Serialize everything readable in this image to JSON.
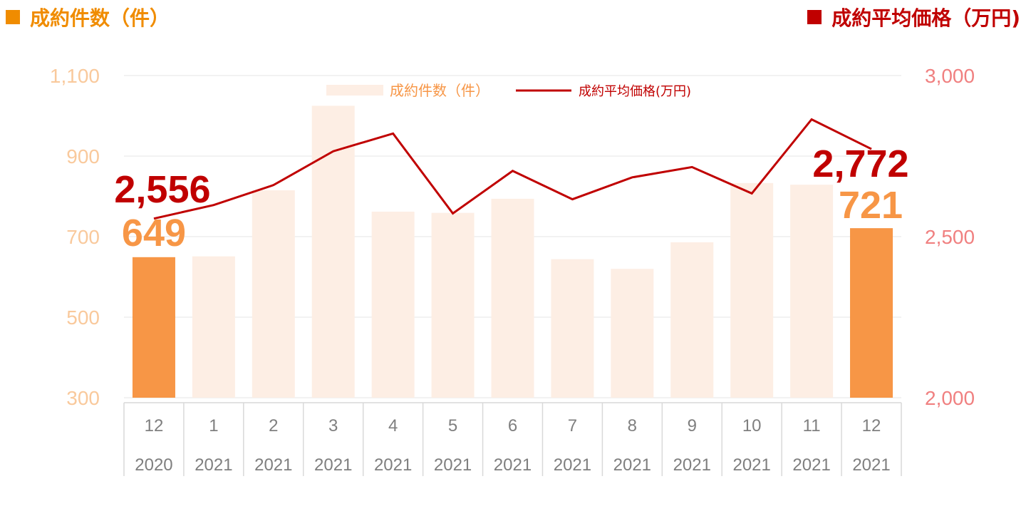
{
  "header": {
    "left_label": "成約件数（件）",
    "right_label": "成約平均価格（万円)"
  },
  "colors": {
    "count_accent": "#f08c00",
    "price_accent": "#c00000",
    "bar_highlight": "#f79646",
    "bar_light": "#fdeee4",
    "left_axis_text": "#f9c99c",
    "right_axis_text": "#f08080",
    "axis_text": "#7f7f7f"
  },
  "chart_data": {
    "type": "bar",
    "categories": [
      "12",
      "1",
      "2",
      "3",
      "4",
      "5",
      "6",
      "7",
      "8",
      "9",
      "10",
      "11",
      "12"
    ],
    "category_years": [
      "2020",
      "2021",
      "2021",
      "2021",
      "2021",
      "2021",
      "2021",
      "2021",
      "2021",
      "2021",
      "2021",
      "2021",
      "2021"
    ],
    "series": [
      {
        "name": "成約件数（件）",
        "kind": "bar",
        "axis": "left",
        "values": [
          649,
          651,
          815,
          1025,
          762,
          759,
          794,
          644,
          620,
          686,
          833,
          829,
          721
        ],
        "highlight_indices": [
          0,
          12
        ]
      },
      {
        "name": "成約平均価格(万円)",
        "kind": "line",
        "axis": "right",
        "values": [
          2556,
          2598,
          2660,
          2765,
          2820,
          2572,
          2704,
          2616,
          2684,
          2716,
          2634,
          2864,
          2772
        ]
      }
    ],
    "left_axis": {
      "ylim": [
        300,
        1100
      ],
      "ticks": [
        "300",
        "500",
        "700",
        "900",
        "1,100"
      ]
    },
    "right_axis": {
      "ylim": [
        2000,
        3000
      ],
      "ticks": [
        "2,000",
        "2,500",
        "3,000"
      ]
    },
    "annotations": {
      "first_price": "2,556",
      "first_count": "649",
      "last_price": "2,772",
      "last_count": "721"
    },
    "legend_position": "top-center",
    "grid": true
  }
}
